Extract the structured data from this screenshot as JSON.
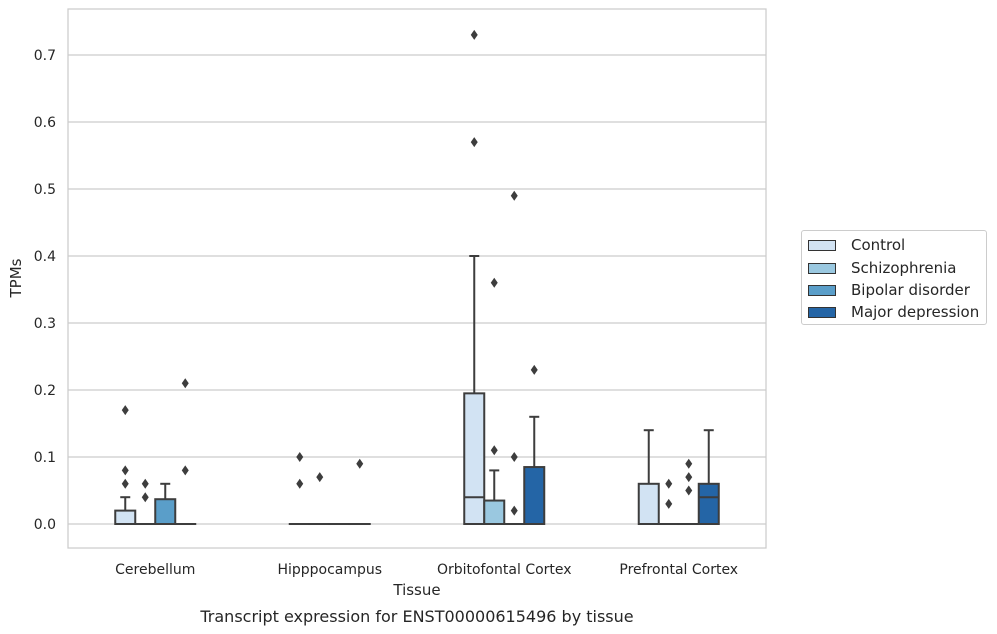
{
  "chart_data": {
    "type": "boxplot",
    "title": "Transcript expression for ENST00000615496 by tissue",
    "xlabel": "Tissue",
    "ylabel": "TPMs",
    "ylim": [
      -0.035,
      0.77
    ],
    "yticks": [
      "0.0",
      "0.1",
      "0.2",
      "0.3",
      "0.4",
      "0.5",
      "0.6",
      "0.7"
    ],
    "ytick_values": [
      0.0,
      0.1,
      0.2,
      0.3,
      0.4,
      0.5,
      0.6,
      0.7
    ],
    "grid": true,
    "legend_position": "right",
    "categories": [
      "Cerebellum",
      "Hipppocampus",
      "Orbitofontal Cortex",
      "Prefrontal Cortex"
    ],
    "series": [
      {
        "name": "Control",
        "color": "#d2e3f3",
        "boxes": [
          {
            "q1": 0.0,
            "median": 0.0,
            "q3": 0.02,
            "whisker_low": 0.0,
            "whisker_high": 0.04,
            "outliers": [
              0.06,
              0.08,
              0.17
            ]
          },
          {
            "q1": 0.0,
            "median": 0.0,
            "q3": 0.0,
            "whisker_low": 0.0,
            "whisker_high": 0.0,
            "outliers": [
              0.06,
              0.1
            ]
          },
          {
            "q1": 0.0,
            "median": 0.04,
            "q3": 0.195,
            "whisker_low": 0.0,
            "whisker_high": 0.4,
            "outliers": [
              0.57,
              0.73
            ]
          },
          {
            "q1": 0.0,
            "median": 0.0,
            "q3": 0.06,
            "whisker_low": 0.0,
            "whisker_high": 0.14,
            "outliers": []
          }
        ]
      },
      {
        "name": "Schizophrenia",
        "color": "#9ac8e0",
        "boxes": [
          {
            "q1": 0.0,
            "median": 0.0,
            "q3": 0.0,
            "whisker_low": 0.0,
            "whisker_high": 0.0,
            "outliers": [
              0.04,
              0.06
            ]
          },
          {
            "q1": 0.0,
            "median": 0.0,
            "q3": 0.0,
            "whisker_low": 0.0,
            "whisker_high": 0.0,
            "outliers": [
              0.07
            ]
          },
          {
            "q1": 0.0,
            "median": 0.0,
            "q3": 0.035,
            "whisker_low": 0.0,
            "whisker_high": 0.08,
            "outliers": [
              0.11,
              0.36
            ]
          },
          {
            "q1": 0.0,
            "median": 0.0,
            "q3": 0.0,
            "whisker_low": 0.0,
            "whisker_high": 0.0,
            "outliers": [
              0.03,
              0.06
            ]
          }
        ]
      },
      {
        "name": "Bipolar disorder",
        "color": "#5a9ec9",
        "boxes": [
          {
            "q1": 0.0,
            "median": 0.0,
            "q3": 0.037,
            "whisker_low": 0.0,
            "whisker_high": 0.06,
            "outliers": []
          },
          {
            "q1": 0.0,
            "median": 0.0,
            "q3": 0.0,
            "whisker_low": 0.0,
            "whisker_high": 0.0,
            "outliers": []
          },
          {
            "q1": 0.0,
            "median": 0.0,
            "q3": 0.0,
            "whisker_low": 0.0,
            "whisker_high": 0.0,
            "outliers": [
              0.02,
              0.1,
              0.49
            ]
          },
          {
            "q1": 0.0,
            "median": 0.0,
            "q3": 0.0,
            "whisker_low": 0.0,
            "whisker_high": 0.0,
            "outliers": [
              0.05,
              0.07,
              0.09
            ]
          }
        ]
      },
      {
        "name": "Major depression",
        "color": "#2465a6",
        "boxes": [
          {
            "q1": 0.0,
            "median": 0.0,
            "q3": 0.0,
            "whisker_low": 0.0,
            "whisker_high": 0.0,
            "outliers": [
              0.08,
              0.21
            ]
          },
          {
            "q1": 0.0,
            "median": 0.0,
            "q3": 0.0,
            "whisker_low": 0.0,
            "whisker_high": 0.0,
            "outliers": [
              0.09
            ]
          },
          {
            "q1": 0.0,
            "median": 0.0,
            "q3": 0.085,
            "whisker_low": 0.0,
            "whisker_high": 0.16,
            "outliers": [
              0.23
            ]
          },
          {
            "q1": 0.0,
            "median": 0.04,
            "q3": 0.06,
            "whisker_low": 0.0,
            "whisker_high": 0.14,
            "outliers": []
          }
        ]
      }
    ]
  }
}
